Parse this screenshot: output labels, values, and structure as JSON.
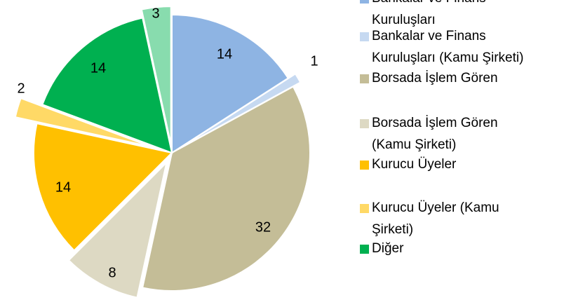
{
  "chart_data": {
    "type": "pie",
    "categories": [
      "Bankalar ve Finans Kuruluşları",
      "Bankalar ve Finans Kuruluşları (Kamu Şirketi)",
      "Borsada İşlem Gören",
      "Borsada İşlem Gören (Kamu Şirketi)",
      "Kurucu Üyeler",
      "Kurucu Üyeler (Kamu Şirketi)",
      "Diğer",
      null
    ],
    "values": [
      14,
      1,
      32,
      8,
      14,
      2,
      14,
      3
    ],
    "colors": [
      "#8eb4e3",
      "#c6d9f1",
      "#c4bd97",
      "#ddd9c3",
      "#ffc000",
      "#ffd966",
      "#00b050",
      "#88dcae"
    ]
  }
}
